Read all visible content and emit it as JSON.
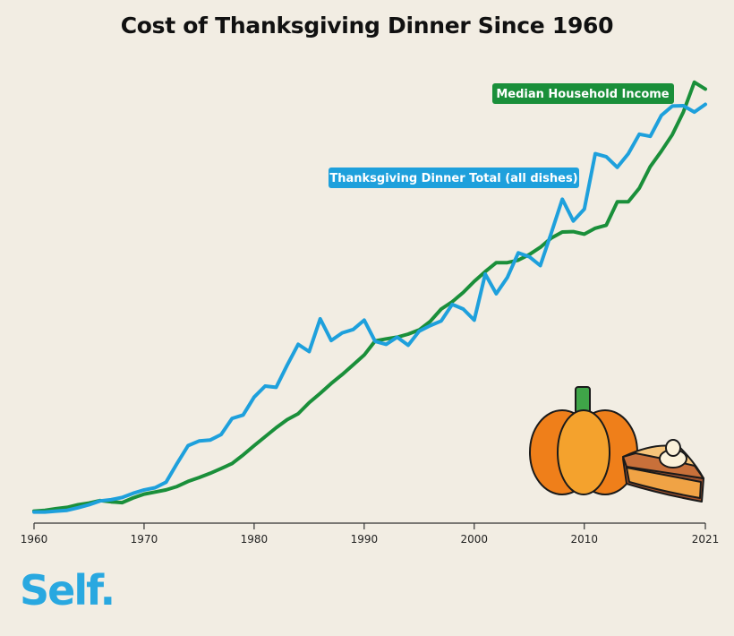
{
  "title": "Cost of Thanksgiving Dinner Since 1960",
  "brand": {
    "name": "Self",
    "dot": ".",
    "color": "#29a8e0"
  },
  "colors": {
    "dinner": "#1ea0dc",
    "income": "#1a8f3a",
    "background": "#f2ede3"
  },
  "illustration": {
    "items": [
      "pumpkin-icon",
      "pie-slice-icon"
    ]
  },
  "chart_data": {
    "type": "line",
    "title": "Cost of Thanksgiving Dinner Since 1960",
    "xlabel": "",
    "ylabel": "",
    "xlim": [
      1960,
      2021
    ],
    "ylim": [
      0,
      100
    ],
    "x_ticks": [
      1960,
      1970,
      1980,
      1990,
      2000,
      2010,
      2021
    ],
    "grid": false,
    "legend": "inline labels",
    "series": [
      {
        "name": "Thanksgiving Dinner Total (all dishes)",
        "color": "#1ea0dc",
        "x": [
          1960,
          1961,
          1962,
          1963,
          1964,
          1965,
          1966,
          1967,
          1968,
          1969,
          1970,
          1971,
          1972,
          1973,
          1974,
          1975,
          1976,
          1977,
          1978,
          1979,
          1980,
          1981,
          1982,
          1983,
          1984,
          1985,
          1986,
          1987,
          1988,
          1989,
          1990,
          1991,
          1992,
          1993,
          1994,
          1995,
          1996,
          1997,
          1998,
          1999,
          2000,
          2001,
          2002,
          2003,
          2004,
          2005,
          2006,
          2007,
          2008,
          2009,
          2010,
          2011,
          2012,
          2013,
          2014,
          2015,
          2016,
          2017,
          2018,
          2019,
          2020,
          2021
        ],
        "values": [
          0.3,
          0.3,
          0.5,
          0.7,
          1.3,
          2.0,
          2.9,
          3.2,
          3.7,
          4.7,
          5.5,
          6.0,
          7.3,
          11.7,
          15.9,
          17.0,
          17.2,
          18.5,
          22.3,
          23.1,
          27.3,
          29.9,
          29.6,
          34.8,
          39.7,
          38.0,
          45.7,
          40.6,
          42.4,
          43.2,
          45.4,
          40.4,
          39.7,
          41.4,
          39.5,
          42.8,
          44.1,
          45.2,
          49.1,
          48.0,
          45.4,
          56.2,
          51.6,
          55.4,
          61.2,
          60.3,
          58.2,
          65.9,
          73.8,
          68.7,
          71.5,
          84.5,
          83.8,
          81.3,
          84.5,
          89.1,
          88.6,
          93.5,
          95.7,
          95.8,
          94.3,
          96.1
        ]
      },
      {
        "name": "Median Household Income",
        "color": "#1a8f3a",
        "x": [
          1960,
          1961,
          1962,
          1963,
          1964,
          1965,
          1966,
          1967,
          1968,
          1969,
          1970,
          1971,
          1972,
          1973,
          1974,
          1975,
          1976,
          1977,
          1978,
          1979,
          1980,
          1981,
          1982,
          1983,
          1984,
          1985,
          1986,
          1987,
          1988,
          1989,
          1990,
          1991,
          1992,
          1993,
          1994,
          1995,
          1996,
          1997,
          1998,
          1999,
          2000,
          2001,
          2002,
          2003,
          2004,
          2005,
          2006,
          2007,
          2008,
          2009,
          2010,
          2011,
          2012,
          2013,
          2014,
          2015,
          2016,
          2017,
          2018,
          2019,
          2020,
          2021
        ],
        "values": [
          0.5,
          0.7,
          1.1,
          1.4,
          2.0,
          2.4,
          3.0,
          2.7,
          2.5,
          3.6,
          4.5,
          5.0,
          5.5,
          6.3,
          7.5,
          8.4,
          9.4,
          10.5,
          11.7,
          13.7,
          15.9,
          18.0,
          20.1,
          22.0,
          23.4,
          26.0,
          28.2,
          30.5,
          32.6,
          34.9,
          37.2,
          40.5,
          41.0,
          41.4,
          42.1,
          43.1,
          45.1,
          48.0,
          49.7,
          51.9,
          54.5,
          56.8,
          58.9,
          58.9,
          59.5,
          60.8,
          62.5,
          64.7,
          66.1,
          66.2,
          65.6,
          67.0,
          67.7,
          73.2,
          73.2,
          76.4,
          81.5,
          85.1,
          89.0,
          94.3,
          101.3,
          99.7
        ]
      }
    ],
    "annotations": [
      {
        "text": "Thanksgiving Dinner Total (all dishes)",
        "series": 0
      },
      {
        "text": "Median Household Income",
        "series": 1
      }
    ]
  }
}
